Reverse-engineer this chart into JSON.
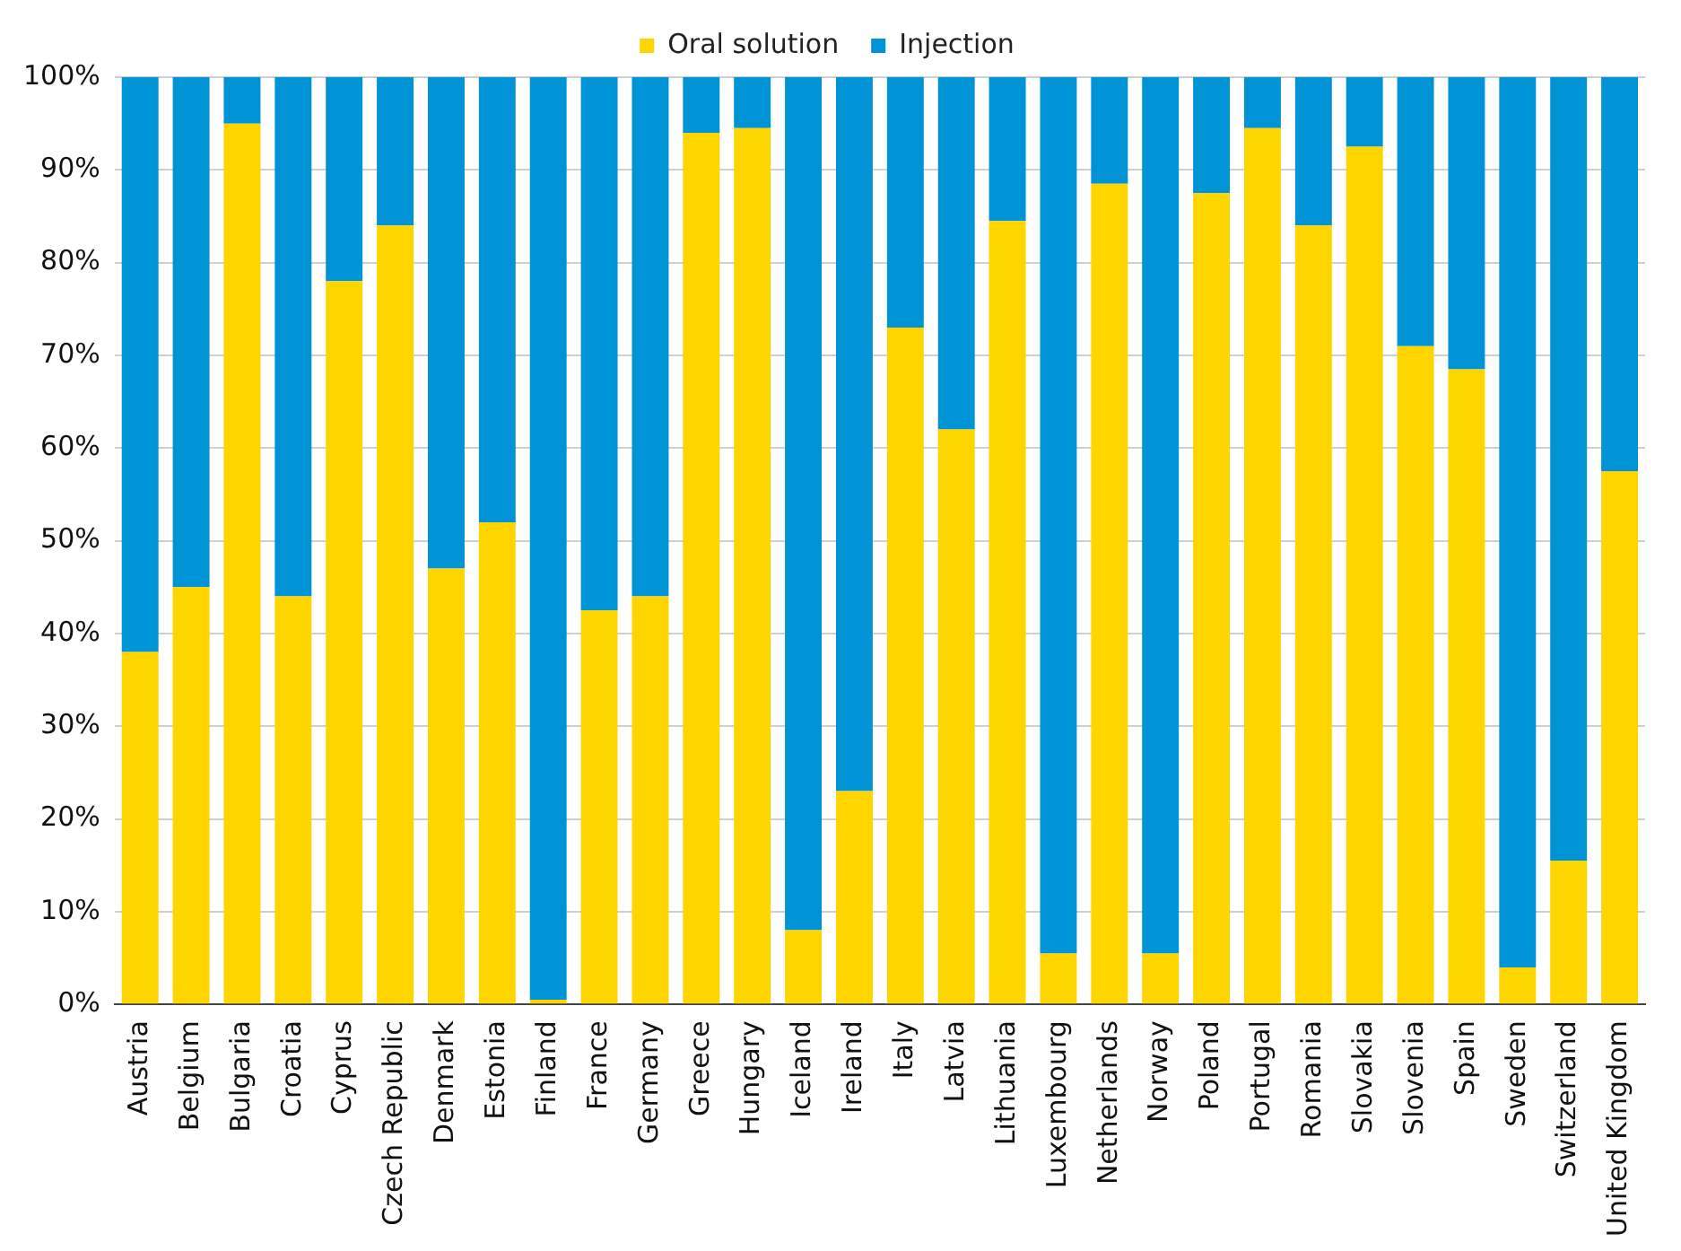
{
  "chart_data": {
    "type": "bar",
    "stacked": true,
    "categories": [
      "Austria",
      "Belgium",
      "Bulgaria",
      "Croatia",
      "Cyprus",
      "Czech Republic",
      "Denmark",
      "Estonia",
      "Finland",
      "France",
      "Germany",
      "Greece",
      "Hungary",
      "Iceland",
      "Ireland",
      "Italy",
      "Latvia",
      "Lithuania",
      "Luxembourg",
      "Netherlands",
      "Norway",
      "Poland",
      "Portugal",
      "Romania",
      "Slovakia",
      "Slovenia",
      "Spain",
      "Sweden",
      "Switzerland",
      "United Kingdom"
    ],
    "series": [
      {
        "name": "Oral solution",
        "color": "#ffd500",
        "values": [
          38,
          45,
          95,
          44,
          78,
          84,
          47,
          52,
          0.5,
          42.5,
          44,
          94,
          94.5,
          8,
          23,
          73,
          62,
          84.5,
          5.5,
          88.5,
          5.5,
          87.5,
          94.5,
          84,
          92.5,
          71,
          68.5,
          4,
          15.5,
          57.5
        ]
      },
      {
        "name": "Injection",
        "color": "#0094d6",
        "values": [
          62,
          55,
          5,
          56,
          22,
          16,
          53,
          48,
          99.5,
          57.5,
          56,
          6,
          5.5,
          92,
          77,
          27,
          38,
          15.5,
          94.5,
          11.5,
          94.5,
          12.5,
          5.5,
          16,
          7.5,
          29,
          31.5,
          96,
          84.5,
          42.5
        ]
      }
    ],
    "ylim": [
      0,
      100
    ],
    "yticks": [
      {
        "value": 0,
        "label": "0%"
      },
      {
        "value": 10,
        "label": "10%"
      },
      {
        "value": 20,
        "label": "20%"
      },
      {
        "value": 30,
        "label": "30%"
      },
      {
        "value": 40,
        "label": "40%"
      },
      {
        "value": 50,
        "label": "50%"
      },
      {
        "value": 60,
        "label": "60%"
      },
      {
        "value": 70,
        "label": "70%"
      },
      {
        "value": 80,
        "label": "80%"
      },
      {
        "value": 90,
        "label": "90%"
      },
      {
        "value": 100,
        "label": "100%"
      }
    ],
    "grid": "y",
    "legend": "top"
  }
}
